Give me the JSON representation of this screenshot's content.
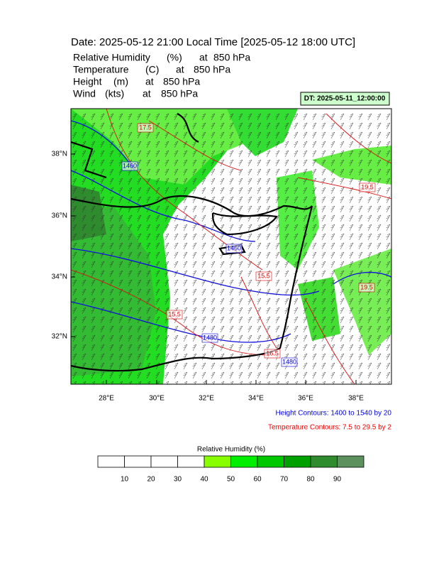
{
  "header": {
    "title": "Date: 2025-05-12  21:00 Local Time [2025-05-12  18:00 UTC]",
    "fields": [
      [
        "Relative Humidity",
        "(%)",
        "at",
        "850 hPa"
      ],
      [
        "Temperature",
        "(C)",
        "at",
        "850 hPa"
      ],
      [
        "Height",
        "(m)",
        "at",
        "850 hPa"
      ],
      [
        "Wind",
        "(kts)",
        "at",
        "850 hPa"
      ]
    ]
  },
  "dt_box": "DT: 2025-05-11_12:00:00",
  "map": {
    "lat_labels": [
      "38°N",
      "36°N",
      "34°N",
      "32°N"
    ],
    "lon_labels": [
      "28°E",
      "30°E",
      "32°E",
      "34°E",
      "36°E",
      "38°E"
    ],
    "contour_labels": [
      "17.5",
      "1460",
      "19.5",
      "1460",
      "15.5",
      "19.5",
      "15.5",
      "1480",
      "16.5",
      "1480"
    ]
  },
  "notes": [
    "Height Contours: 1400 to 1540 by 20",
    "Temperature Contours: 7.5 to 29.5 by 2"
  ],
  "colorbar": {
    "title": "Relative Humidity  (%)",
    "labels": [
      "10",
      "20",
      "30",
      "40",
      "50",
      "60",
      "70",
      "80",
      "90"
    ],
    "colors": [
      "#ffffff",
      "#ffffff",
      "#ffffff",
      "#ffffff",
      "#88ff00",
      "#00ee00",
      "#00c800",
      "#00a000",
      "#2e8b2e",
      "#5c905c"
    ]
  }
}
